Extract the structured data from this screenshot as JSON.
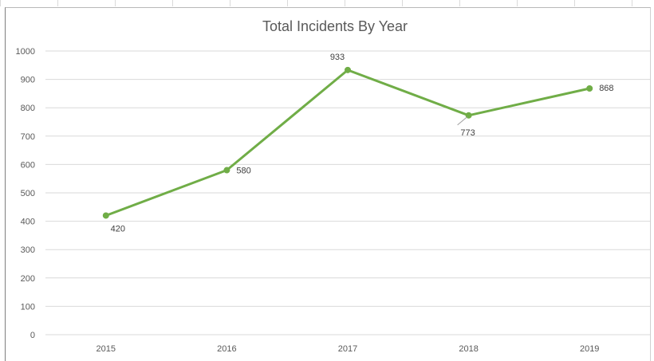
{
  "chart_data": {
    "type": "line",
    "title": "Total Incidents By Year",
    "xlabel": "",
    "ylabel": "",
    "categories": [
      "2015",
      "2016",
      "2017",
      "2018",
      "2019"
    ],
    "values": [
      420,
      580,
      933,
      773,
      868
    ],
    "ylim": [
      0,
      1000
    ],
    "yticks": [
      0,
      100,
      200,
      300,
      400,
      500,
      600,
      700,
      800,
      900,
      1000
    ],
    "grid": "horizontal",
    "legend": "none",
    "line_color": "#70ad47",
    "gridline_color": "#d9d9d9"
  }
}
